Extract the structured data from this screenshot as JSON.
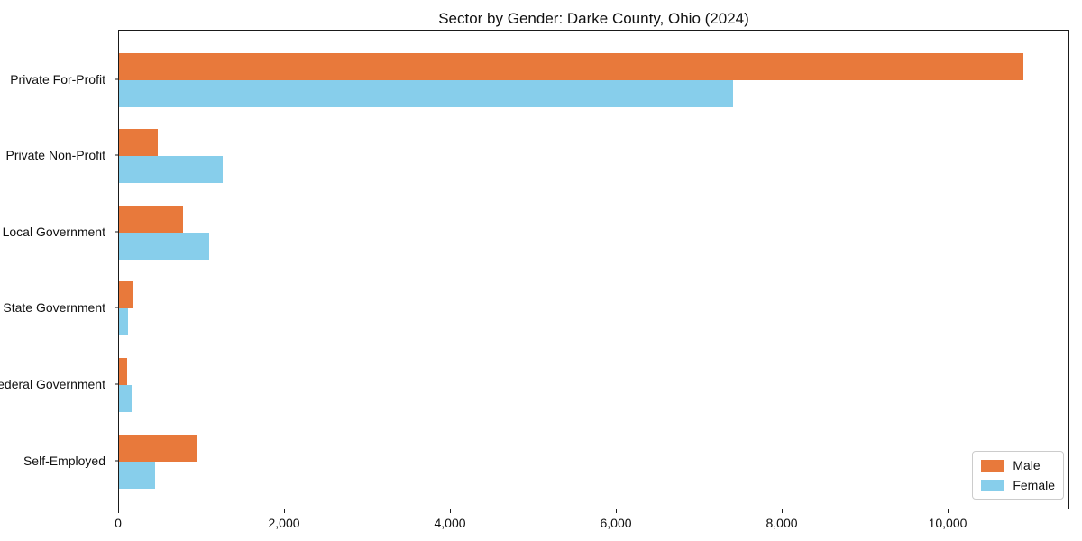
{
  "chart_data": {
    "type": "bar",
    "orientation": "horizontal",
    "title": "Sector by Gender: Darke County, Ohio (2024)",
    "categories": [
      "Private For-Profit",
      "Private Non-Profit",
      "Local Government",
      "State Government",
      "Federal Government",
      "Self-Employed"
    ],
    "series": [
      {
        "name": "Male",
        "color": "#e8793b",
        "values": [
          10900,
          470,
          770,
          175,
          100,
          930
        ]
      },
      {
        "name": "Female",
        "color": "#87ceeb",
        "values": [
          7400,
          1250,
          1090,
          110,
          155,
          435
        ]
      }
    ],
    "xlim": [
      0,
      11445
    ],
    "xticks": [
      0,
      2000,
      4000,
      6000,
      8000,
      10000
    ],
    "xtick_labels": [
      "0",
      "2,000",
      "4,000",
      "6,000",
      "8,000",
      "10,000"
    ],
    "ylabel": "",
    "xlabel": "",
    "grid": false,
    "legend_position": "lower right"
  }
}
